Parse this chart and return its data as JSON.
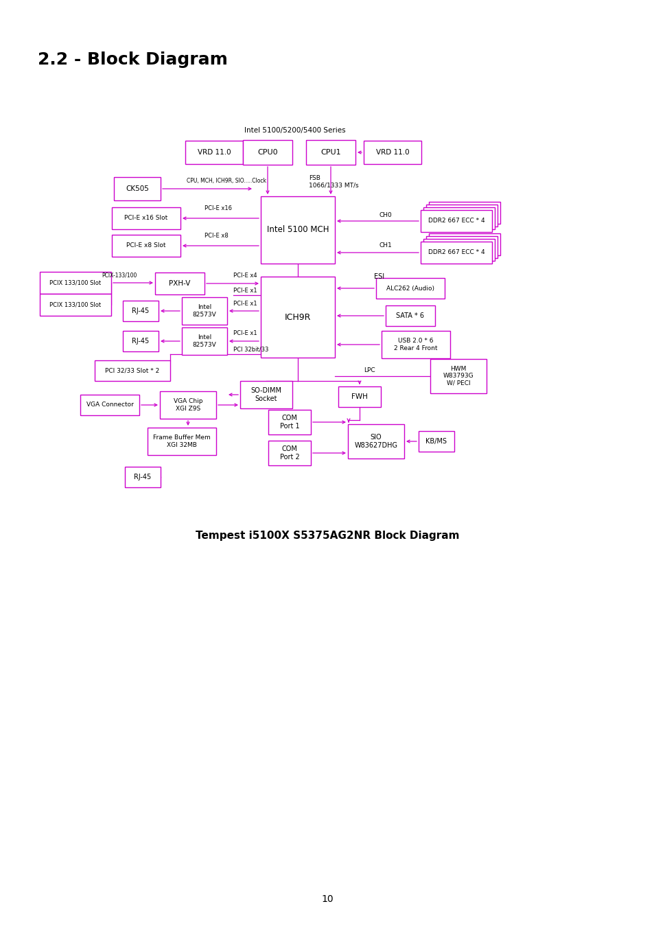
{
  "title": "2.2 - Block Diagram",
  "subtitle": "Tempest i5100X S5375AG2NR Block Diagram",
  "page_number": "10",
  "box_color": "#CC00CC",
  "bg_color": "#FFFFFF",
  "diagram_label": "Intel 5100/5200/5400 Series"
}
